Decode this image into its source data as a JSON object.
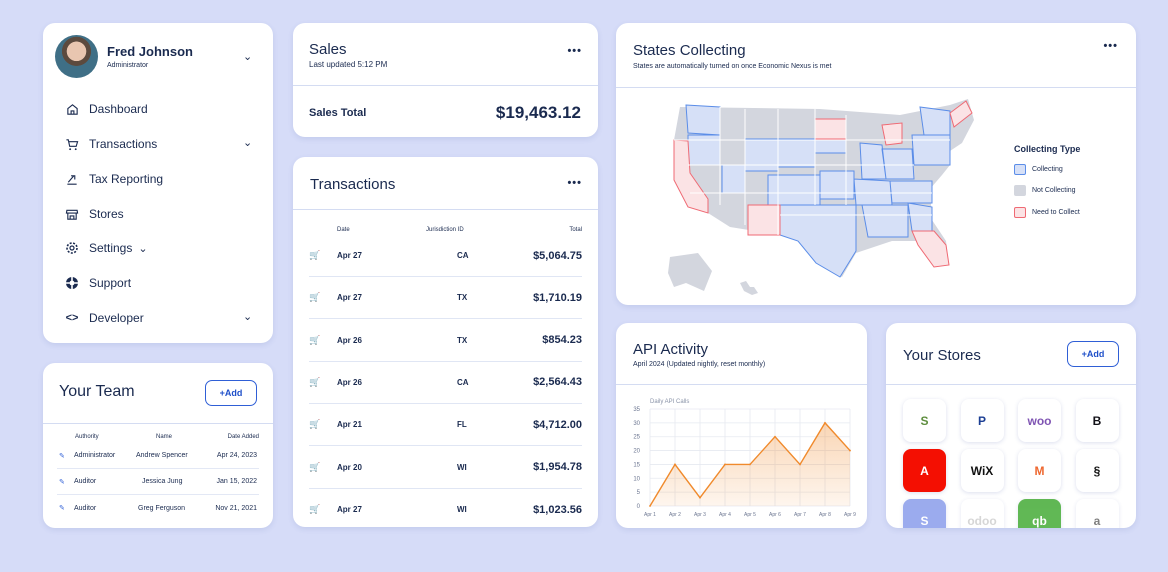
{
  "profile": {
    "name": "Fred Johnson",
    "role": "Administrator",
    "nav": [
      {
        "label": "Dashboard",
        "icon": "home-icon"
      },
      {
        "label": "Transactions",
        "icon": "cart-icon"
      },
      {
        "label": "Tax Reporting",
        "icon": "tax-reporting-icon"
      },
      {
        "label": "Stores",
        "icon": "store-icon"
      },
      {
        "label": "Settings",
        "icon": "gear-icon"
      },
      {
        "label": "Support",
        "icon": "lifebuoy-icon"
      },
      {
        "label": "Developer",
        "icon": "code-icon"
      }
    ]
  },
  "team": {
    "title": "Your Team",
    "add_label": "+Add",
    "columns": [
      "Authority",
      "Name",
      "Date Added"
    ],
    "rows": [
      {
        "authority": "Administrator",
        "name": "Andrew Spencer",
        "date": "Apr 24, 2023"
      },
      {
        "authority": "Auditor",
        "name": "Jessica Jung",
        "date": "Jan 15, 2022"
      },
      {
        "authority": "Auditor",
        "name": "Greg Ferguson",
        "date": "Nov 21, 2021"
      }
    ]
  },
  "sales": {
    "title": "Sales",
    "updated": "Last updated 5:12 PM",
    "total_label": "Sales Total",
    "total_value": "$19,463.12",
    "menu": "•••"
  },
  "transactions": {
    "title": "Transactions",
    "menu": "•••",
    "columns": [
      "Date",
      "Jurisdiction ID",
      "Total"
    ],
    "rows": [
      {
        "date": "Apr 27",
        "jurisdiction": "CA",
        "total": "$5,064.75"
      },
      {
        "date": "Apr 27",
        "jurisdiction": "TX",
        "total": "$1,710.19"
      },
      {
        "date": "Apr 26",
        "jurisdiction": "TX",
        "total": "$854.23"
      },
      {
        "date": "Apr 26",
        "jurisdiction": "CA",
        "total": "$2,564.43"
      },
      {
        "date": "Apr 21",
        "jurisdiction": "FL",
        "total": "$4,712.00"
      },
      {
        "date": "Apr 20",
        "jurisdiction": "WI",
        "total": "$1,954.78"
      },
      {
        "date": "Apr 27",
        "jurisdiction": "WI",
        "total": "$1,023.56"
      }
    ]
  },
  "states": {
    "title": "States Collecting",
    "subtitle": "States are automatically turned on once Economic Nexus is met",
    "menu": "•••",
    "legend_title": "Collecting Type",
    "legend": [
      {
        "label": "Collecting",
        "fill": "#d6e0f7",
        "stroke": "#5b8de8"
      },
      {
        "label": "Not Collecting",
        "fill": "#d3d6de",
        "stroke": "#d3d6de"
      },
      {
        "label": "Need to Collect",
        "fill": "#fbe3e5",
        "stroke": "#ef6a74"
      }
    ]
  },
  "api": {
    "title": "API Activity",
    "subtitle": "April 2024 (Updated nightly, reset monthly)",
    "chart_data": {
      "type": "area",
      "title": "Daily API Calls",
      "categories": [
        "Apr 1",
        "Apr 2",
        "Apr 3",
        "Apr 4",
        "Apr 5",
        "Apr 6",
        "Apr 7",
        "Apr 8",
        "Apr 9"
      ],
      "values": [
        0,
        15,
        3,
        15,
        15,
        25,
        15,
        30,
        20
      ],
      "ylim": [
        0,
        35
      ],
      "yticks": [
        0,
        5,
        10,
        15,
        20,
        25,
        30,
        35
      ],
      "color": "#f08a2c"
    }
  },
  "stores": {
    "title": "Your Stores",
    "add_label": "+Add",
    "items": [
      {
        "name": "shopify-logo-icon",
        "glyph": "S",
        "color": "#5e8e3e"
      },
      {
        "name": "paypal-logo-icon",
        "glyph": "P",
        "color": "#1c3f94"
      },
      {
        "name": "woo-logo-icon",
        "glyph": "woo",
        "color": "#7f54b3"
      },
      {
        "name": "bigcommerce-logo-icon",
        "glyph": "B",
        "color": "#121118"
      },
      {
        "name": "adobe-logo-icon",
        "glyph": "A",
        "color": "#ffffff"
      },
      {
        "name": "wix-logo-icon",
        "glyph": "WiX",
        "color": "#111111"
      },
      {
        "name": "magento-logo-icon",
        "glyph": "M",
        "color": "#ee672f"
      },
      {
        "name": "squarespace-logo-icon",
        "glyph": "§",
        "color": "#111111"
      },
      {
        "name": "stripe-logo-icon",
        "glyph": "S",
        "color": "#ffffff"
      },
      {
        "name": "odoo-logo-icon",
        "glyph": "odoo",
        "color": "#c9c9c9"
      },
      {
        "name": "quickbooks-logo-icon",
        "glyph": "qb",
        "color": "#ffffff"
      },
      {
        "name": "amazon-logo-icon",
        "glyph": "a",
        "color": "#555555"
      }
    ]
  }
}
